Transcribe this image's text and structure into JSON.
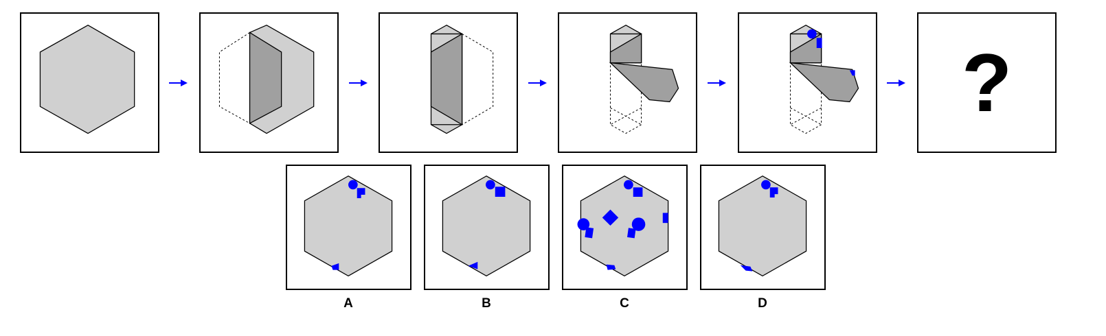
{
  "puzzle": {
    "question_mark": "?",
    "options": [
      {
        "letter": "A"
      },
      {
        "letter": "B"
      },
      {
        "letter": "C"
      },
      {
        "letter": "D"
      }
    ]
  },
  "colors": {
    "paper": "#d0d0d0",
    "folded": "#a0a0a0",
    "marks": "#0000ff",
    "outline": "#000000"
  },
  "icons": {
    "arrow": "right-arrow-icon",
    "marks": [
      "circle-mark-icon",
      "square-mark-icon",
      "diamond-mark-icon",
      "triangle-mark-icon"
    ]
  }
}
